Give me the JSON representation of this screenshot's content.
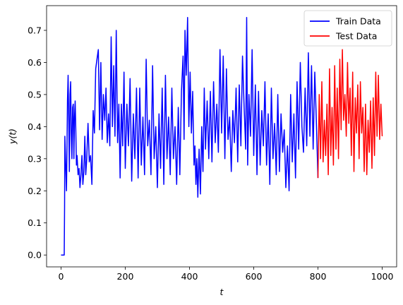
{
  "chart_data": {
    "type": "line",
    "title": "",
    "xlabel": "t",
    "ylabel": "y(t)",
    "xlim": [
      -45,
      1045
    ],
    "ylim": [
      -0.037,
      0.777
    ],
    "xticks": [
      0,
      200,
      400,
      600,
      800,
      1000
    ],
    "yticks": [
      0.0,
      0.1,
      0.2,
      0.3,
      0.4,
      0.5,
      0.6,
      0.7
    ],
    "xtick_labels": [
      "0",
      "200",
      "400",
      "600",
      "800",
      "1000"
    ],
    "ytick_labels": [
      "0.0",
      "0.1",
      "0.2",
      "0.3",
      "0.4",
      "0.5",
      "0.6",
      "0.7"
    ],
    "grid": false,
    "legend_position": "top-right",
    "series": [
      {
        "name": "Train Data",
        "color": "#0000ff",
        "x": [
          0,
          5,
          10,
          11,
          12,
          14,
          17,
          19,
          20,
          22,
          24,
          26,
          28,
          30,
          32,
          34,
          36,
          38,
          40,
          42,
          44,
          46,
          48,
          50,
          53,
          56,
          59,
          62,
          65,
          68,
          71,
          74,
          77,
          80,
          84,
          88,
          92,
          96,
          100,
          104,
          108,
          112,
          116,
          120,
          124,
          128,
          132,
          136,
          140,
          144,
          148,
          152,
          156,
          160,
          164,
          168,
          172,
          176,
          180,
          184,
          188,
          192,
          196,
          200,
          205,
          210,
          215,
          220,
          225,
          230,
          235,
          240,
          245,
          250,
          255,
          260,
          265,
          270,
          275,
          280,
          285,
          290,
          295,
          300,
          305,
          310,
          315,
          320,
          325,
          330,
          335,
          340,
          345,
          350,
          355,
          360,
          365,
          370,
          375,
          380,
          383,
          386,
          390,
          394,
          398,
          402,
          406,
          410,
          414,
          417,
          420,
          423,
          426,
          430,
          434,
          438,
          442,
          446,
          450,
          455,
          460,
          465,
          470,
          475,
          480,
          485,
          490,
          495,
          500,
          505,
          510,
          515,
          520,
          525,
          530,
          535,
          540,
          545,
          550,
          555,
          560,
          565,
          570,
          575,
          578,
          581,
          585,
          590,
          595,
          600,
          605,
          610,
          615,
          620,
          625,
          630,
          635,
          640,
          645,
          650,
          655,
          660,
          665,
          670,
          675,
          680,
          685,
          690,
          695,
          700,
          705,
          710,
          715,
          720,
          725,
          730,
          735,
          740,
          745,
          750,
          755,
          760,
          765,
          770,
          775,
          780,
          785,
          790,
          795,
          800
        ],
        "y": [
          0.0,
          0.0,
          0.0,
          0.15,
          0.37,
          0.3,
          0.2,
          0.37,
          0.48,
          0.56,
          0.42,
          0.26,
          0.5,
          0.54,
          0.38,
          0.3,
          0.46,
          0.47,
          0.3,
          0.43,
          0.48,
          0.39,
          0.28,
          0.31,
          0.25,
          0.27,
          0.21,
          0.25,
          0.31,
          0.22,
          0.26,
          0.37,
          0.25,
          0.3,
          0.41,
          0.29,
          0.31,
          0.22,
          0.45,
          0.38,
          0.58,
          0.61,
          0.64,
          0.39,
          0.6,
          0.36,
          0.5,
          0.42,
          0.52,
          0.35,
          0.44,
          0.34,
          0.68,
          0.4,
          0.59,
          0.37,
          0.7,
          0.35,
          0.47,
          0.24,
          0.47,
          0.34,
          0.57,
          0.27,
          0.47,
          0.34,
          0.55,
          0.23,
          0.44,
          0.3,
          0.52,
          0.24,
          0.52,
          0.28,
          0.43,
          0.25,
          0.61,
          0.34,
          0.42,
          0.25,
          0.59,
          0.3,
          0.4,
          0.21,
          0.44,
          0.27,
          0.52,
          0.22,
          0.56,
          0.3,
          0.43,
          0.25,
          0.52,
          0.3,
          0.4,
          0.22,
          0.46,
          0.25,
          0.51,
          0.62,
          0.36,
          0.7,
          0.56,
          0.74,
          0.4,
          0.57,
          0.38,
          0.51,
          0.28,
          0.34,
          0.22,
          0.3,
          0.18,
          0.33,
          0.19,
          0.4,
          0.26,
          0.52,
          0.33,
          0.48,
          0.3,
          0.51,
          0.29,
          0.54,
          0.35,
          0.47,
          0.32,
          0.64,
          0.38,
          0.62,
          0.3,
          0.58,
          0.36,
          0.43,
          0.26,
          0.45,
          0.35,
          0.52,
          0.29,
          0.53,
          0.34,
          0.62,
          0.46,
          0.33,
          0.74,
          0.28,
          0.5,
          0.37,
          0.64,
          0.31,
          0.53,
          0.25,
          0.51,
          0.28,
          0.45,
          0.34,
          0.54,
          0.28,
          0.44,
          0.22,
          0.52,
          0.3,
          0.41,
          0.25,
          0.5,
          0.26,
          0.44,
          0.32,
          0.39,
          0.21,
          0.34,
          0.2,
          0.5,
          0.29,
          0.44,
          0.24,
          0.54,
          0.33,
          0.6,
          0.4,
          0.32,
          0.52,
          0.34,
          0.63,
          0.37,
          0.59,
          0.33,
          0.57,
          0.42,
          0.24
        ]
      },
      {
        "name": "Test Data",
        "color": "#ff0000",
        "x": [
          800,
          804,
          808,
          812,
          816,
          820,
          824,
          828,
          832,
          836,
          840,
          844,
          848,
          852,
          856,
          860,
          864,
          868,
          872,
          876,
          880,
          884,
          888,
          892,
          896,
          900,
          904,
          908,
          912,
          916,
          920,
          924,
          928,
          932,
          936,
          940,
          944,
          948,
          952,
          956,
          960,
          964,
          968,
          972,
          976,
          980,
          984,
          988,
          992,
          996,
          1000
        ],
        "y": [
          0.24,
          0.5,
          0.3,
          0.54,
          0.29,
          0.42,
          0.31,
          0.47,
          0.25,
          0.58,
          0.31,
          0.46,
          0.28,
          0.59,
          0.33,
          0.52,
          0.3,
          0.61,
          0.39,
          0.64,
          0.42,
          0.5,
          0.37,
          0.6,
          0.41,
          0.52,
          0.31,
          0.57,
          0.26,
          0.49,
          0.38,
          0.53,
          0.3,
          0.54,
          0.38,
          0.46,
          0.26,
          0.47,
          0.25,
          0.42,
          0.32,
          0.48,
          0.27,
          0.49,
          0.31,
          0.57,
          0.37,
          0.56,
          0.36,
          0.47,
          0.37
        ]
      }
    ]
  }
}
